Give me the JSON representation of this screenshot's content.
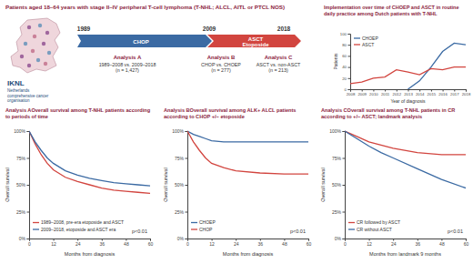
{
  "header": {
    "title": "Patients aged 18–64 years with stage II–IV peripheral T-cell lymphoma (T-NHL; ALCL, AITL or PTCL NOS)"
  },
  "logo": {
    "name": "IKNL",
    "lines": [
      "Netherlands",
      "comprehensive cancer",
      "organisation"
    ]
  },
  "timeline": {
    "years": [
      "1989",
      "2009",
      "2018"
    ],
    "phases": [
      {
        "lines": [
          "CHOP"
        ]
      },
      {
        "lines": [
          "ASCT",
          "Etoposide"
        ]
      }
    ],
    "analyses": [
      {
        "title": "Analysis A",
        "lines": [
          "1989–2008 vs. 2009–2018",
          "(n = 1,427)"
        ]
      },
      {
        "title": "Analysis B",
        "lines": [
          "CHOP vs. CHOEP",
          "(n = 277)"
        ]
      },
      {
        "title": "Analysis C",
        "lines": [
          "ASCT vs. non-ASCT",
          "(n = 213)"
        ]
      }
    ]
  },
  "chart_data": [
    {
      "type": "line",
      "title": "Implementation over time of CHOEP and ASCT in routine daily practice among Dutch patients with T-NHL",
      "x_label": "Year of diagnosis",
      "y_label": "Patients",
      "x": [
        2008,
        2009,
        2010,
        2011,
        2012,
        2013,
        2014,
        2015,
        2016,
        2017,
        2018
      ],
      "xlim": [
        2008,
        2018
      ],
      "xticks": [
        2008,
        2009,
        2010,
        2011,
        2012,
        2013,
        2014,
        2015,
        2016,
        2017,
        2018
      ],
      "ylim": [
        0,
        100
      ],
      "yticks": [
        0,
        20,
        40,
        60,
        80,
        100
      ],
      "legend": "upper left",
      "series": [
        {
          "name": "CHOEP",
          "color": "#3b6aa3",
          "values": [
            null,
            null,
            null,
            null,
            null,
            0,
            15,
            40,
            68,
            83,
            80
          ]
        },
        {
          "name": "ASCT",
          "color": "#d2453f",
          "values": [
            10,
            13,
            20,
            22,
            35,
            31,
            26,
            37,
            35,
            40,
            40
          ]
        }
      ]
    },
    {
      "type": "line",
      "panel": "Analysis A",
      "title": "Overall survival among T-NHL patients according to periods of time",
      "x_label": "Months from diagnosis",
      "y_label": "Overall survival",
      "x": [
        0,
        3,
        6,
        9,
        12,
        18,
        24,
        30,
        36,
        42,
        48,
        54,
        60
      ],
      "xlim": [
        0,
        60
      ],
      "xticks": [
        0,
        12,
        24,
        36,
        48,
        60
      ],
      "ylim": [
        0,
        100
      ],
      "yticks": [
        {
          "value": 0,
          "label": "0%"
        },
        {
          "value": 25,
          "label": "25%"
        },
        {
          "value": 50,
          "label": "50%"
        },
        {
          "value": 75,
          "label": "75%"
        },
        {
          "value": 100,
          "label": "100%"
        }
      ],
      "legend": "lower left",
      "annotation": "p<0.01",
      "series": [
        {
          "name": "1989–2008, pre-era etoposide and ASCT",
          "color": "#d2453f",
          "values": [
            100,
            88,
            78,
            70,
            64,
            57,
            53,
            50,
            47,
            45,
            44,
            43,
            42
          ]
        },
        {
          "name": "2009–2018, etoposide and ASCT era",
          "color": "#3b6aa3",
          "values": [
            100,
            90,
            82,
            75,
            70,
            63,
            59,
            56,
            54,
            52,
            51,
            50,
            49
          ]
        }
      ]
    },
    {
      "type": "line",
      "panel": "Analysis B",
      "title": "Overall survival among ALK+ ALCL patients according to CHOP +/− etoposide",
      "x_label": "Months from diagnosis",
      "y_label": "Overall survival",
      "x": [
        0,
        3,
        6,
        9,
        12,
        18,
        24,
        36,
        48,
        60
      ],
      "xlim": [
        0,
        60
      ],
      "xticks": [
        0,
        12,
        24,
        36,
        48,
        60
      ],
      "ylim": [
        0,
        100
      ],
      "yticks": [
        {
          "value": 0,
          "label": "0%"
        },
        {
          "value": 25,
          "label": "25%"
        },
        {
          "value": 50,
          "label": "50%"
        },
        {
          "value": 75,
          "label": "75%"
        },
        {
          "value": 100,
          "label": "100%"
        }
      ],
      "legend": "lower left",
      "annotation": "p<0.01",
      "series": [
        {
          "name": "CHOEP",
          "color": "#3b6aa3",
          "values": [
            100,
            97,
            95,
            93,
            91,
            90,
            90,
            90,
            90,
            90
          ]
        },
        {
          "name": "CHOP",
          "color": "#d2453f",
          "values": [
            100,
            90,
            82,
            75,
            70,
            66,
            63,
            61,
            60,
            60
          ]
        }
      ]
    },
    {
      "type": "line",
      "panel": "Analysis C",
      "title": "Overall survival among T-NHL patients in CR according to +/− ASCT; landmark analysis",
      "x_label": "Months from landmark 9 months",
      "y_label": "Overall survival",
      "x": [
        0,
        6,
        12,
        18,
        24,
        36,
        48,
        60
      ],
      "xlim": [
        0,
        60
      ],
      "xticks": [
        0,
        12,
        24,
        36,
        48,
        60
      ],
      "ylim": [
        0,
        100
      ],
      "yticks": [
        {
          "value": 0,
          "label": "0%"
        },
        {
          "value": 25,
          "label": "25%"
        },
        {
          "value": 50,
          "label": "50%"
        },
        {
          "value": 75,
          "label": "75%"
        },
        {
          "value": 100,
          "label": "100%"
        }
      ],
      "legend": "lower left",
      "annotation": "p<0.01",
      "series": [
        {
          "name": "CR followed by ASCT",
          "color": "#d2453f",
          "values": [
            100,
            95,
            90,
            87,
            84,
            80,
            78,
            78
          ]
        },
        {
          "name": "CR without ASCT",
          "color": "#3b6aa3",
          "values": [
            100,
            93,
            86,
            80,
            75,
            65,
            55,
            47
          ]
        }
      ]
    }
  ]
}
